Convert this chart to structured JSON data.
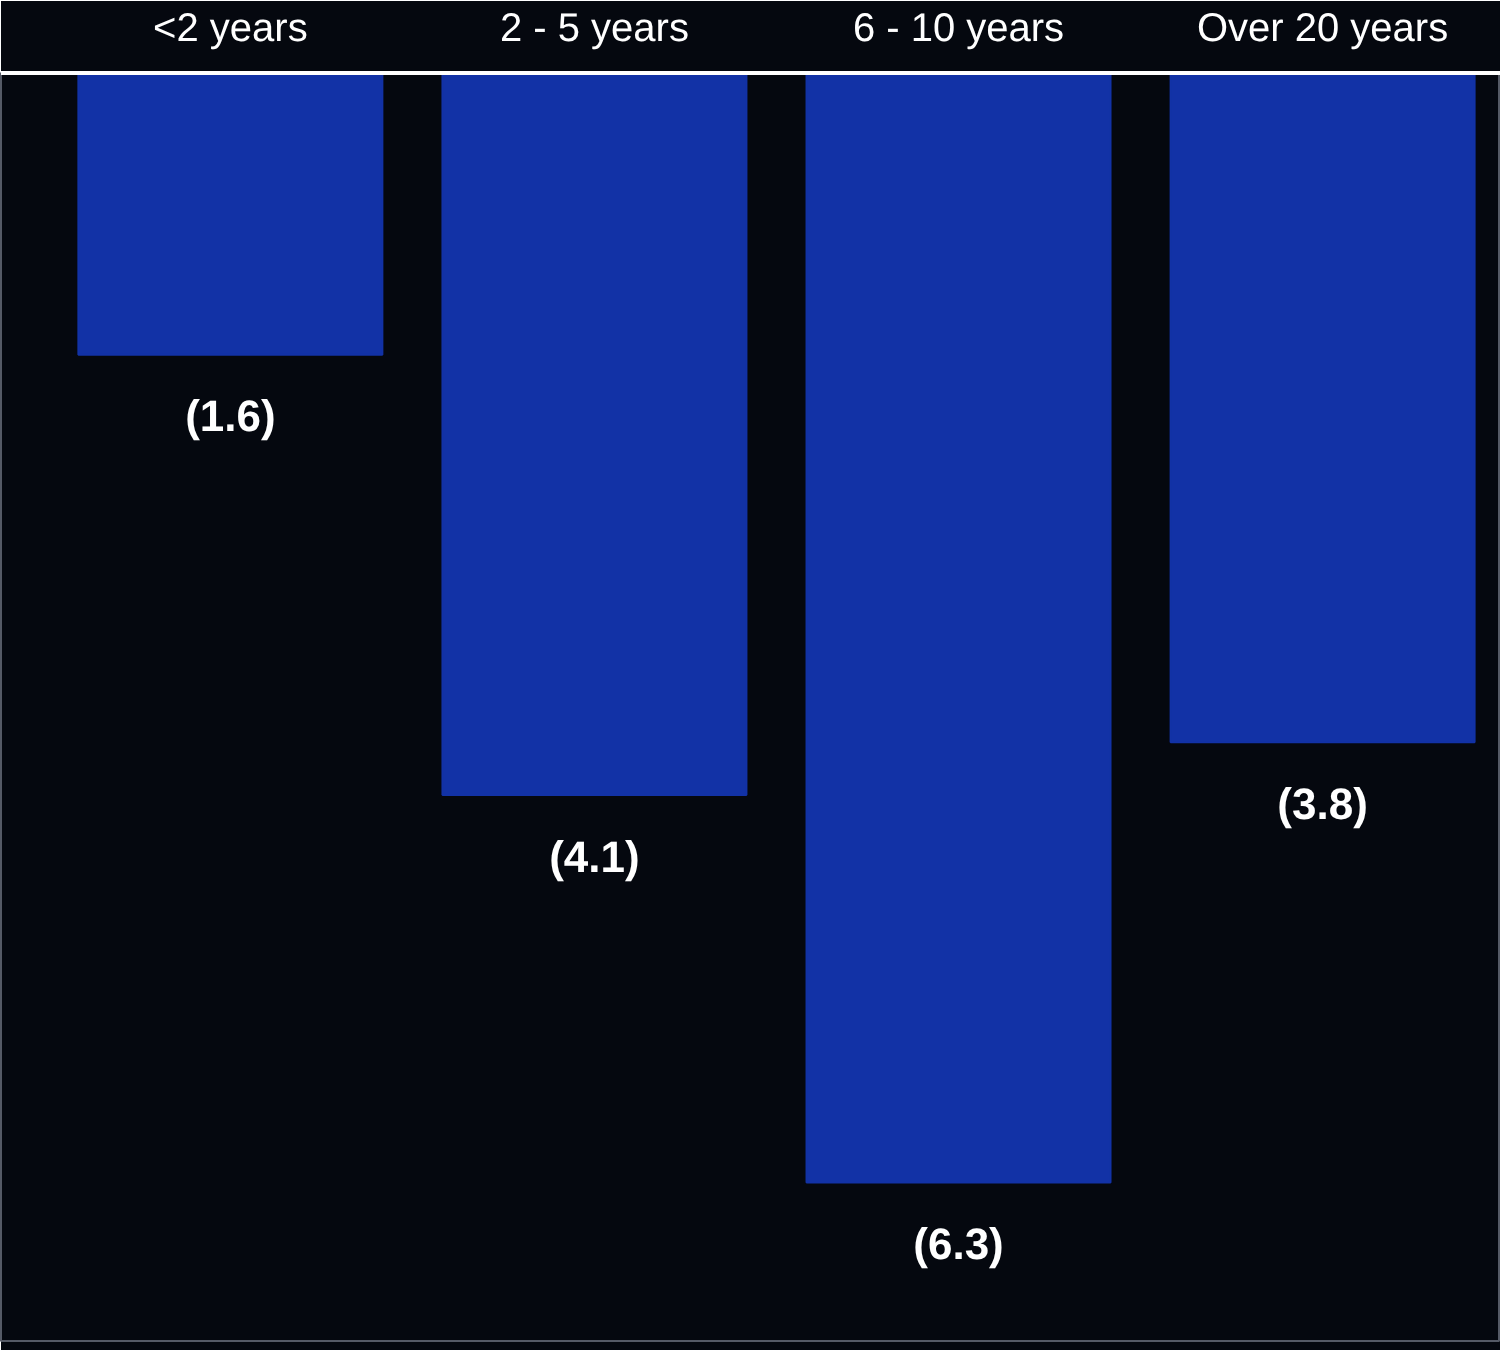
{
  "chart_data": {
    "type": "bar",
    "categories": [
      "<2 years",
      "2 - 5 years",
      "6 - 10 years",
      "Over 20 years"
    ],
    "values": [
      -1.6,
      -4.1,
      -6.3,
      -3.8
    ],
    "value_labels": [
      "(1.6)",
      "(4.1)",
      "(6.3)",
      "(3.8)"
    ],
    "color": "#1232a6",
    "ylim": [
      -7.2,
      0
    ],
    "tick_labels": "x",
    "grid": false
  }
}
